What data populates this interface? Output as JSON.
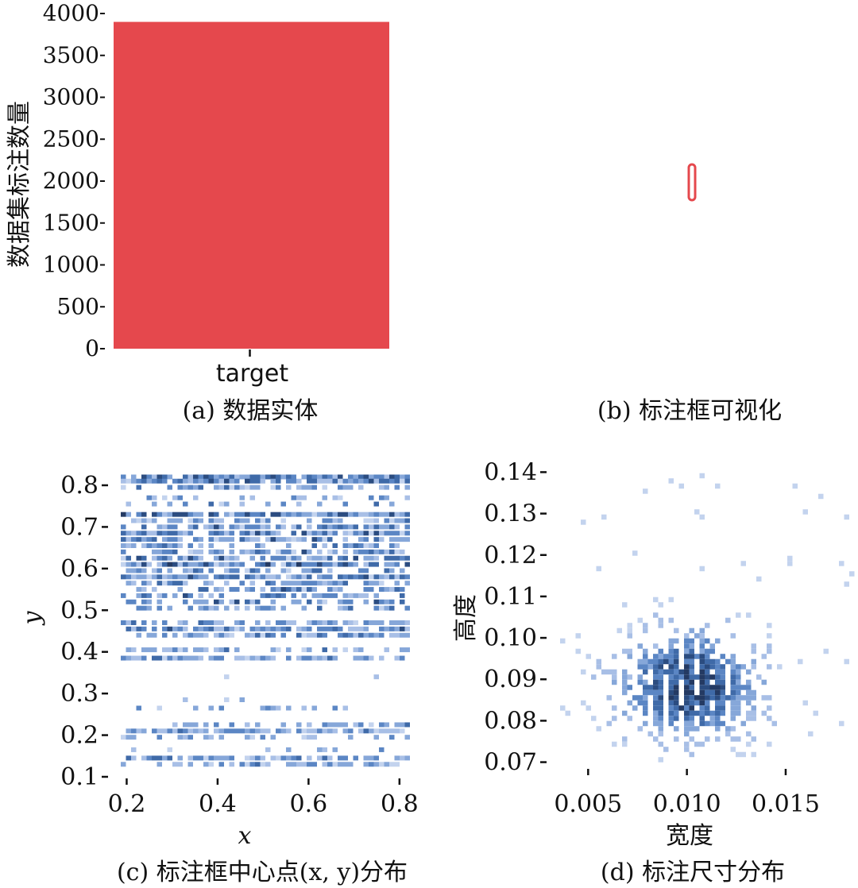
{
  "chart_data": [
    {
      "panel": "a",
      "type": "bar",
      "caption": "(a) 数据实体",
      "categories": [
        "target"
      ],
      "values": [
        3900
      ],
      "ylabel": "数据集标注数量",
      "ylim": [
        0,
        4000
      ],
      "yticks": [
        "0",
        "500",
        "1000",
        "1500",
        "2000",
        "2500",
        "3000",
        "3500",
        "4000"
      ],
      "color": "#e5484d"
    },
    {
      "panel": "b",
      "type": "scatter",
      "caption": "(b) 标注框可视化",
      "description_marks": [
        {
          "x": 0.5,
          "y": 0.5,
          "w": 0.01,
          "h": 0.09
        }
      ],
      "color": "#e5484d"
    },
    {
      "panel": "c",
      "type": "heatmap",
      "caption": "(c) 标注框中心点(x, y)分布",
      "xlabel": "x",
      "ylabel": "y",
      "xlim": [
        0.18,
        0.83
      ],
      "ylim": [
        0.1,
        0.84
      ],
      "xticks": [
        "0.2",
        "0.4",
        "0.6",
        "0.8"
      ],
      "yticks": [
        "0.1",
        "0.2",
        "0.3",
        "0.4",
        "0.5",
        "0.6",
        "0.7",
        "0.8"
      ],
      "rows": [
        {
          "y": 0.82,
          "density": 0.75,
          "fill": 0.85
        },
        {
          "y": 0.81,
          "density": 0.6,
          "fill": 0.8
        },
        {
          "y": 0.795,
          "density": 0.45,
          "fill": 0.6
        },
        {
          "y": 0.77,
          "density": 0.35,
          "fill": 0.35
        },
        {
          "y": 0.755,
          "density": 0.35,
          "fill": 0.3
        },
        {
          "y": 0.73,
          "density": 0.8,
          "fill": 0.9
        },
        {
          "y": 0.715,
          "density": 0.45,
          "fill": 0.6
        },
        {
          "y": 0.7,
          "density": 0.55,
          "fill": 0.75
        },
        {
          "y": 0.685,
          "density": 0.65,
          "fill": 0.85
        },
        {
          "y": 0.67,
          "density": 0.55,
          "fill": 0.8
        },
        {
          "y": 0.655,
          "density": 0.45,
          "fill": 0.6
        },
        {
          "y": 0.64,
          "density": 0.5,
          "fill": 0.7
        },
        {
          "y": 0.625,
          "density": 0.55,
          "fill": 0.75
        },
        {
          "y": 0.61,
          "density": 0.8,
          "fill": 0.9
        },
        {
          "y": 0.595,
          "density": 0.45,
          "fill": 0.5
        },
        {
          "y": 0.58,
          "density": 0.6,
          "fill": 0.85
        },
        {
          "y": 0.565,
          "density": 0.45,
          "fill": 0.65
        },
        {
          "y": 0.55,
          "density": 0.5,
          "fill": 0.65
        },
        {
          "y": 0.535,
          "density": 0.5,
          "fill": 0.6
        },
        {
          "y": 0.52,
          "density": 0.55,
          "fill": 0.6
        },
        {
          "y": 0.505,
          "density": 0.45,
          "fill": 0.55
        },
        {
          "y": 0.47,
          "density": 0.45,
          "fill": 0.65
        },
        {
          "y": 0.455,
          "density": 0.55,
          "fill": 0.8
        },
        {
          "y": 0.44,
          "density": 0.4,
          "fill": 0.6
        },
        {
          "y": 0.405,
          "density": 0.35,
          "fill": 0.55
        },
        {
          "y": 0.385,
          "density": 0.35,
          "fill": 0.7
        },
        {
          "y": 0.34,
          "density": 0.2,
          "fill": 0.02
        },
        {
          "y": 0.285,
          "density": 0.2,
          "fill": 0.08
        },
        {
          "y": 0.265,
          "density": 0.25,
          "fill": 0.25
        },
        {
          "y": 0.225,
          "density": 0.35,
          "fill": 0.45
        },
        {
          "y": 0.21,
          "density": 0.45,
          "fill": 0.85
        },
        {
          "y": 0.195,
          "density": 0.3,
          "fill": 0.4
        },
        {
          "y": 0.165,
          "density": 0.2,
          "fill": 0.2
        },
        {
          "y": 0.145,
          "density": 0.4,
          "fill": 0.7
        },
        {
          "y": 0.13,
          "density": 0.35,
          "fill": 0.6
        }
      ]
    },
    {
      "panel": "d",
      "type": "heatmap",
      "caption": "(d) 标注尺寸分布",
      "xlabel": "宽度",
      "ylabel": "高度",
      "xlim": [
        0.0035,
        0.0185
      ],
      "ylim": [
        0.068,
        0.142
      ],
      "xticks": [
        "0.005",
        "0.010",
        "0.015"
      ],
      "yticks": [
        "0.07",
        "0.08",
        "0.09",
        "0.10",
        "0.11",
        "0.12",
        "0.13",
        "0.14"
      ],
      "center": {
        "x": 0.01,
        "y": 0.089
      },
      "spread": {
        "x": 0.0023,
        "y": 0.008
      }
    }
  ],
  "colors": {
    "bar": "#e5484d",
    "heat_light": "#a8bfe6",
    "heat_mid": "#5b86c4",
    "heat_dark": "#243a63"
  }
}
